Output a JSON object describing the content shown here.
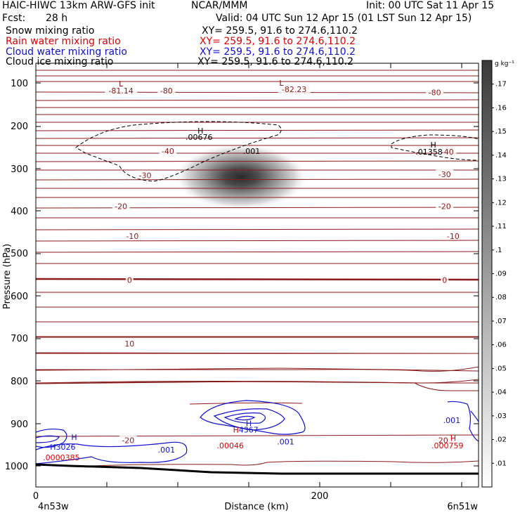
{
  "header": {
    "title": "HAIC-HIWC 13km ARW-GFS init",
    "org": "NCAR/MMM",
    "init": "Init: 00 UTC Sat 11 Apr 15",
    "fcst_label": "Fcst:",
    "fcst_value": "28 h",
    "valid": "Valid: 04 UTC Sun 12 Apr 15 (01 LST Sun 12 Apr 15)"
  },
  "fields": [
    {
      "name": "Snow mixing ratio",
      "xy": "XY= 259.5, 91.6 to 274.6,110.2",
      "color": "#000000"
    },
    {
      "name": "Rain water mixing ratio",
      "xy": "XY= 259.5, 91.6 to 274.6,110.2",
      "color": "#e00000"
    },
    {
      "name": "Cloud water mixing ratio",
      "xy": "XY= 259.5, 91.6 to 274.6,110.2",
      "color": "#1010d0"
    },
    {
      "name": "Cloud ice mixing ratio",
      "xy": "XY= 259.5, 91.6 to 274.6,110.2",
      "color": "#000000"
    }
  ],
  "chart_data": {
    "type": "heatmap",
    "ylabel": "Pressure (hPa)",
    "xlabel": "Distance (km)",
    "x_ticks": [
      0,
      200
    ],
    "xlim": [
      0,
      300
    ],
    "y_ticks": [
      100,
      200,
      300,
      400,
      500,
      600,
      700,
      800,
      900,
      1000
    ],
    "ylim": [
      50,
      1050
    ],
    "x_start_label": "4n53w",
    "x_end_label": "6n51w",
    "colorbar": {
      "unit": "g kg⁻¹",
      "levels": [
        ".01",
        ".02",
        ".03",
        ".04",
        ".05",
        ".06",
        ".07",
        ".08",
        ".09",
        ".1",
        ".11",
        ".12",
        ".13",
        ".14",
        ".15",
        ".16",
        ".17"
      ]
    },
    "shading_max": {
      "x": 145,
      "p": 330,
      "value": 0.17
    },
    "temperature_labels": [
      {
        "text": "-80",
        "x": 92,
        "p": 118
      },
      {
        "text": "-81.14",
        "x": 60,
        "p": 118
      },
      {
        "text": "-82.23",
        "x": 182,
        "p": 115
      },
      {
        "text": "-80",
        "x": 281,
        "p": 122
      },
      {
        "text": "-40",
        "x": 93,
        "p": 260
      },
      {
        "text": "-30",
        "x": 77,
        "p": 317
      },
      {
        "text": "-40",
        "x": 290,
        "p": 262
      },
      {
        "text": "-30",
        "x": 288,
        "p": 315
      },
      {
        "text": "-20",
        "x": 60,
        "p": 390
      },
      {
        "text": "-20",
        "x": 288,
        "p": 390
      },
      {
        "text": "-10",
        "x": 68,
        "p": 460
      },
      {
        "text": "-10",
        "x": 294,
        "p": 460
      },
      {
        "text": "0",
        "x": 66,
        "p": 563
      },
      {
        "text": "0",
        "x": 288,
        "p": 563
      },
      {
        "text": "10",
        "x": 66,
        "p": 713
      },
      {
        "text": "-20",
        "x": 65,
        "p": 940
      },
      {
        "text": "20",
        "x": 287,
        "p": 940
      }
    ],
    "extrema_labels": [
      {
        "text": "L",
        "x": 60,
        "p": 102,
        "color": "#8b0000"
      },
      {
        "text": "L",
        "x": 173,
        "p": 100,
        "color": "#8b0000"
      },
      {
        "text": "H",
        "x": 116,
        "p": 212,
        "color": "#000000"
      },
      {
        "text": ".00676",
        "x": 115,
        "p": 227,
        "color": "#000000"
      },
      {
        "text": ".001",
        "x": 152,
        "p": 260,
        "color": "#000000"
      },
      {
        "text": "H",
        "x": 280,
        "p": 245,
        "color": "#000000"
      },
      {
        "text": ".01358",
        "x": 277,
        "p": 262,
        "color": "#000000"
      },
      {
        "text": "H",
        "x": 150,
        "p": 900,
        "color": "#1010d0"
      },
      {
        "text": ".4367",
        "x": 149,
        "p": 915,
        "color": "#1010d0"
      },
      {
        "text": "H",
        "x": 141,
        "p": 915,
        "color": "#e00000"
      },
      {
        "text": ".00046",
        "x": 137,
        "p": 952,
        "color": "#e00000"
      },
      {
        "text": ".001",
        "x": 176,
        "p": 943,
        "color": "#1010d0"
      },
      {
        "text": ".001",
        "x": 92,
        "p": 962,
        "color": "#1010d0"
      },
      {
        "text": "H",
        "x": 27,
        "p": 932,
        "color": "#1010d0"
      },
      {
        "text": "H3026",
        "x": 19,
        "p": 955,
        "color": "#1010d0"
      },
      {
        "text": ".0000385",
        "x": 18,
        "p": 980,
        "color": "#e00000"
      },
      {
        "text": "H",
        "x": 294,
        "p": 935,
        "color": "#e00000"
      },
      {
        "text": ".000759",
        "x": 290,
        "p": 952,
        "color": "#e00000"
      },
      {
        "text": ".001",
        "x": 293,
        "p": 893,
        "color": "#1010d0"
      }
    ]
  }
}
